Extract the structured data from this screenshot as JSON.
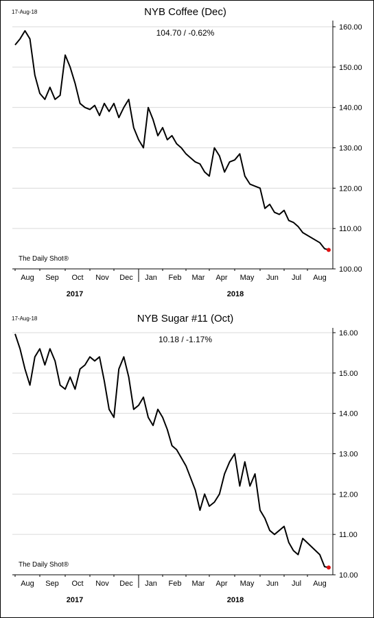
{
  "chart_data": [
    {
      "type": "line",
      "date_label": "17-Aug-18",
      "title": "NYB Coffee (Dec)",
      "subtitle": "104.70  /  -0.62%",
      "watermark": "The Daily Shot®",
      "ylim": [
        100,
        160
      ],
      "yticks": [
        "100.00",
        "110.00",
        "120.00",
        "130.00",
        "140.00",
        "150.00",
        "160.00"
      ],
      "month_labels": [
        "Aug",
        "Sep",
        "Oct",
        "Nov",
        "Dec",
        "Jan",
        "Feb",
        "Mar",
        "Apr",
        "May",
        "Jun",
        "Jul",
        "Aug"
      ],
      "year_labels": [
        "2017",
        "2018"
      ],
      "line_color": "#000000",
      "marker_color": "#e01010",
      "grid": true,
      "series": [
        {
          "x": [
            0.0,
            0.2,
            0.4,
            0.6,
            0.8,
            1.0,
            1.2,
            1.4,
            1.6,
            1.8,
            2.0,
            2.2,
            2.4,
            2.6,
            2.8,
            3.0,
            3.2,
            3.4,
            3.6,
            3.8,
            4.0,
            4.2,
            4.4,
            4.6,
            4.8,
            5.0,
            5.2,
            5.4,
            5.6,
            5.8,
            6.0,
            6.2,
            6.4,
            6.6,
            6.8,
            7.0,
            7.2,
            7.4,
            7.6,
            7.8,
            8.0,
            8.2,
            8.4,
            8.6,
            8.8,
            9.0,
            9.2,
            9.4,
            9.6,
            9.8,
            10.0,
            10.2,
            10.4,
            10.6,
            10.8,
            11.0,
            11.2,
            11.4,
            11.6,
            11.8,
            12.0,
            12.2,
            12.37
          ],
          "values": [
            155.5,
            157,
            159,
            157,
            148,
            143.5,
            142,
            145,
            142,
            143,
            153,
            150,
            146,
            141,
            140,
            139.5,
            140.5,
            138,
            141,
            139,
            141,
            137.5,
            140,
            142,
            135,
            132,
            130,
            140,
            137,
            133,
            135,
            132,
            133,
            131,
            130,
            128.5,
            127.5,
            126.5,
            126,
            124,
            123,
            130,
            128,
            124,
            126.5,
            127,
            128.5,
            123,
            121,
            120.5,
            120,
            115,
            116,
            114,
            113.5,
            114.5,
            112,
            111.5,
            110.5,
            109,
            106.5,
            105,
            104.7
          ]
        }
      ]
    },
    {
      "type": "line",
      "date_label": "17-Aug-18",
      "title": "NYB Sugar #11 (Oct)",
      "subtitle": "10.18  /  -1.17%",
      "watermark": "The Daily Shot®",
      "ylim": [
        10,
        16
      ],
      "yticks": [
        "10.00",
        "11.00",
        "12.00",
        "13.00",
        "14.00",
        "15.00",
        "16.00"
      ],
      "month_labels": [
        "Aug",
        "Sep",
        "Oct",
        "Nov",
        "Dec",
        "Jan",
        "Feb",
        "Mar",
        "Apr",
        "May",
        "Jun",
        "Jul",
        "Aug"
      ],
      "year_labels": [
        "2017",
        "2018"
      ],
      "line_color": "#000000",
      "marker_color": "#e01010",
      "grid": true,
      "series": [
        {
          "x": [
            0.0,
            0.2,
            0.4,
            0.6,
            0.8,
            1.0,
            1.2,
            1.4,
            1.6,
            1.8,
            2.0,
            2.2,
            2.4,
            2.6,
            2.8,
            3.0,
            3.2,
            3.4,
            3.6,
            3.8,
            4.0,
            4.2,
            4.4,
            4.6,
            4.8,
            5.0,
            5.2,
            5.4,
            5.6,
            5.8,
            6.0,
            6.2,
            6.4,
            6.6,
            6.8,
            7.0,
            7.2,
            7.4,
            7.6,
            7.8,
            8.0,
            8.2,
            8.4,
            8.6,
            8.8,
            9.0,
            9.2,
            9.4,
            9.6,
            9.8,
            10.0,
            10.2,
            10.4,
            10.6,
            10.8,
            11.0,
            11.2,
            11.4,
            11.6,
            11.8,
            12.0,
            12.2,
            12.37
          ],
          "values": [
            15.97,
            15.6,
            15.1,
            14.7,
            15.4,
            15.6,
            15.2,
            15.6,
            15.3,
            14.7,
            14.6,
            14.9,
            14.6,
            15.1,
            15.2,
            15.4,
            15.3,
            15.4,
            14.8,
            14.1,
            13.9,
            15.1,
            15.4,
            14.9,
            14.1,
            14.2,
            14.4,
            13.9,
            13.7,
            14.1,
            13.9,
            13.6,
            13.2,
            13.1,
            12.9,
            12.7,
            12.4,
            12.1,
            11.6,
            12.0,
            11.7,
            11.8,
            12.0,
            12.5,
            12.8,
            13.0,
            12.2,
            12.8,
            12.2,
            12.5,
            11.6,
            11.4,
            11.1,
            11.0,
            11.1,
            11.2,
            10.8,
            10.6,
            10.5,
            10.9,
            10.5,
            10.2,
            10.18
          ]
        }
      ]
    }
  ]
}
